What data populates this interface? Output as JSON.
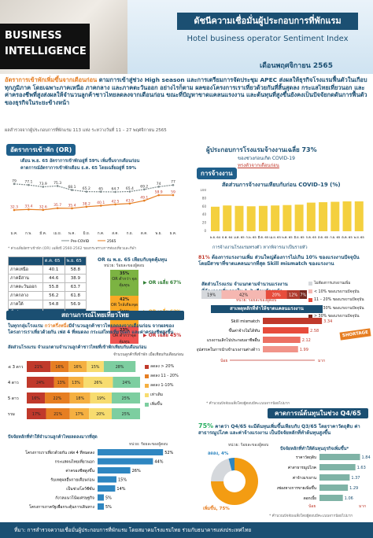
{
  "header": {
    "brand1": "BUSINESS",
    "brand2": "INTELLIGENCE",
    "title_th": "ดัชนีความเชื่อมั่นผู้ประกอบการที่พักแรม",
    "title_en": "Hotel business operator Sentiment Index",
    "month": "เดือนพฤศจิกายน 2565"
  },
  "intro": {
    "lead": "อัตราการเข้าพักเพิ่มขึ้นจากเดือนก่อน",
    "text": " ตามการเข้าสู่ช่วง High season และการเตรียมการจัดประชุม APEC ส่งผลให้ธุรกิจโรงแรมฟื้นตัวในเกือบทุกภูมิภาค โดยเฉพาะภาคเหนือ ภาคกลาง และภาคตะวันออก อย่างไรก็ตาม ผลของโครงการเราเที่ยวด้วยกันที่สิ้นสุดลง กระแสไทยเที่ยวนอก และค่าครองชีพที่สูงส่งผลให้จำนวนลูกค้าชาวไทยลดลงจากเดือนก่อน ขณะที่ปัญหาขาดแคลนแรงงาน และต้นทุนที่สูงขึ้นยังคงเป็นปัจจัยกดดันการฟื้นตัวของธุรกิจในระยะข้างหน้า",
    "survey": "ผลสำรวจจากผู้ประกอบการที่พักแรม 113 แห่ง ระหว่างวันที่ 11 – 27 พฤศจิกายน 2565"
  },
  "occ": {
    "title": "อัตราการเข้าพัก (OR)",
    "note1": "เดือน พ.ย. 65 อัตราการเข้าพักอยู่ที่ 59% เพิ่มขึ้นจากเดือนก่อน",
    "note2": "คาดการณ์อัตราการเข้าพักเดือน ธ.ค. 65 โดยเฉลี่ยอยู่ที่ 59%",
    "legend_pre": "Pre-COVID",
    "legend_2565": "2565",
    "footnote": "* ค่าเฉลี่ยอัตราเข้าพัก (OR) เฉลี่ยปี 2560-2562 ของกระทรวงการท่องเที่ยวและกีฬา",
    "table_head": [
      "",
      "ต.ค. 65",
      "พ.ย. 65"
    ],
    "table_rows": [
      [
        "ภาคเหนือ",
        "40.1",
        "58.8"
      ],
      [
        "ภาคอีสาน",
        "44.6",
        "38.9"
      ],
      [
        "ภาคตะวันออก",
        "55.8",
        "63.7"
      ],
      [
        "ภาคกลาง",
        "56.2",
        "61.8"
      ],
      [
        "ภาคใต้",
        "54.8",
        "56.9"
      ],
      [
        "ทั่วประเทศ",
        "49.1",
        "58.9"
      ]
    ],
    "or_title": "OR ณ พ.ย. 65 เทียบกับจุดคุ้มทุน",
    "or_unit": "หน่วย: ร้อยละของผู้ตอบ",
    "or_segments": [
      {
        "value": "35%",
        "label": "OR ต่ำกว่า จุดคุ้มทุน",
        "avg": "OR เฉลี่ย 67%"
      },
      {
        "value": "42%",
        "label": "OR ใกล้เคียงจุดคุ้มทุน",
        "avg": "OR เฉลี่ย 62%"
      },
      {
        "value": "23%",
        "label": "OR ต่ำกว่าจุดคุ้มทุน",
        "avg": "OR เฉลี่ย 45%"
      }
    ]
  },
  "tourist": {
    "title": "สถานการณ์ไทยเที่ยวไทย",
    "lead1": "ในทุกกลุ่มโรงแรม ",
    "lead2": "กว่าครึ่งหนึ่ง",
    "lead3": "มีจำนวนลูกค้าชาวไทยลดลงจากเดือนก่อน จากผลของโครงการเราเที่ยวด้วยกัน เฟส 4 ที่หมดลง กระแสไทยเที่ยวนอก และค่าครองชีพสูงขึ้น",
    "chart_title": "สัดส่วนโรงแรม จำแนกตามจำนวนลูกค้าชาวไทยที่เข้าพักเทียบกับเดือนก่อน",
    "unit": "จำนวนลูกค้าที่เข้าพัก เมื่อเทียบกับเดือนก่อน",
    "legend": [
      "ลดลง > 20%",
      "ลดลง 11 - 20%",
      "ลดลง 1-10%",
      "เท่าเดิม",
      "เพิ่มขึ้น"
    ],
    "factor_title": "ปัจจัยหลักที่ทำให้จำนวนลูกค้าไทยลดลงมากที่สุด",
    "factor_unit": "หน่วย: ร้อยละของผู้ตอบ"
  },
  "employ": {
    "title": "ผู้ประกอบการโรงแรมจ้างงานเฉลี่ย 73%",
    "sub1": "ของช่วงก่อนเกิด COVID-19",
    "sub2": "ทรงตัวจากเดือนก่อน",
    "box": "การจ้างงาน",
    "chart_title": "สัดส่วนการจ้างงานเทียบกับก่อน COVID-19 (%)",
    "sub3": "การจ้างงานโรงแรมทรงตัว หากพิจารณาเป็นรายหัว",
    "p81": "81%",
    "p81_text": " ต้องการแรงงานเพิ่ม ส่วนใหญ่ต้องการไม่เกิน 10% ของแรงงานปัจจุบัน โดยมีสาขาที่ขาดแคลนมากที่สุด Skill mismatch ของแรงงาน",
    "need_title": "สัดส่วนโรงแรม จำแนกตามจำนวนแรงงาน",
    "need_sub": "ที่ต้องการเพิ่มภายใน 1-3 เดือนข้างหน้า",
    "need_unit": "หน่วย: ร้อยละของผู้ตอบ",
    "need_legend": [
      "ไม่ต้องการแรงงานเพิ่ม",
      "< 10% ของแรงงานปัจจุบัน",
      "11 – 20% ของแรงงานปัจจุบัน",
      "21 – 30% ของแรงงานปัจจุบัน",
      "> 30% ของแรงงานปัจจุบัน"
    ],
    "reason_title": "สาเหตุหลักที่ทำให้ขาดแคลนแรงงาน",
    "reason_note": "* คำนวณปัจจัยเฉลี่ยโดยผู้ตอบมีคะแนนจากน้อยไปมาก",
    "less": "น้อย",
    "more": "มาก",
    "shortage": "SHORTAGE"
  },
  "cost": {
    "title": "คาดการณ์ต้นทุนในช่วง Q4/65",
    "lead1": "75%",
    "lead2": " คาดว่า Q4/65 จะมีต้นทุนเพิ่มขึ้นเทียบกับ Q3/65 โดยราคาวัตถุดิบ ค่าสาธารณูปโภค และค่าจ้างแรงงาน เป็นปัจจัยหลักที่ทำต้นทุนสูงขึ้น",
    "unit": "หน่วย: ร้อยละของผู้ตอบ",
    "pie_up": "เพิ่มขึ้น, 75%",
    "pie_down": "ลดลง, 4%",
    "factor_title": "ปัจจัยหลักที่ทำให้ต้นทุนธุรกิจเพิ่มขึ้น*",
    "note": "* คำนวณปัจจัยเฉลี่ยโดยผู้ตอบมีคะแนนจากน้อยไปมาก"
  },
  "footer": {
    "source": "ที่มา: การสำรวจความเชื่อมั่นผู้ประกอบการที่พักแรม โดยสมาคมโรงแรมไทย ร่วมกับธนาคารแห่งประเทศไทย"
  },
  "chart_data": [
    {
      "type": "line",
      "title": "อัตราการเข้าพัก (OR)",
      "categories": [
        "ม.ค.",
        "ก.พ.",
        "มี.ค.",
        "เม.ย.",
        "พ.ค.",
        "มิ.ย.",
        "ก.ค.",
        "ส.ค.",
        "ก.ย.",
        "ต.ค.",
        "พ.ย.",
        "ธ.ค."
      ],
      "series": [
        {
          "name": "Pre-COVID",
          "values": [
            79.0,
            77.1,
            73.9,
            75.3,
            68.1,
            65.2,
            65.0,
            64.7,
            65.4,
            69.2,
            74.0,
            77.0
          ]
        },
        {
          "name": "2565",
          "values": [
            32.3,
            33.4,
            32.6,
            35.7,
            35.4,
            38.2,
            40.1,
            42.5,
            43.9,
            49.1,
            58.9,
            59
          ]
        }
      ]
    },
    {
      "type": "bar",
      "title": "สัดส่วนการจ้างงานเทียบกับก่อน COVID-19 (%)",
      "categories": [
        "พ.ย. 64",
        "ธ.ค. 64",
        "ม.ค. 65",
        "ก.พ. 65",
        "มี.ค. 65",
        "เม.ย. 65",
        "พ.ค. 65",
        "มิ.ย. 65",
        "ก.ค. 65",
        "ส.ค. 65",
        "ก.ย. 65",
        "ต.ค. 65",
        "พ.ย. 65"
      ],
      "values": [
        60,
        63,
        62,
        61,
        62,
        63,
        64,
        65,
        70,
        71,
        72,
        73,
        73
      ],
      "ylim": [
        0,
        100
      ]
    },
    {
      "type": "bar",
      "title": "สัดส่วนโรงแรม จำแนกตามจำนวนแรงงาน",
      "categories": [
        "ไม่ต้องการแรงงานเพิ่ม",
        "< 10%",
        "11 – 20%",
        "21 – 30%",
        "> 30%"
      ],
      "values": [
        19,
        42,
        20,
        12,
        7
      ]
    },
    {
      "type": "bar",
      "title": "สาเหตุหลักที่ทำให้ขาดแคลนแรงงาน",
      "categories": [
        "Skill mismatch",
        "ขึ้นค่าจ้างไม่ได้ทัน",
        "แรงงานเลิกไปประกอบอาชีพอื่น",
        "อุปสรรคในการนำเข้าแรงงานต่างด้าว"
      ],
      "values": [
        3.34,
        2.58,
        2.12,
        1.99
      ]
    },
    {
      "type": "bar",
      "title": "สัดส่วนโรงแรม จำแนกตามจำนวนลูกค้าชาวไทยที่เข้าพักเทียบกับเดือนก่อน",
      "categories": [
        "≤ 3 ดาว",
        "4 ดาว",
        "5 ดาว",
        "รวม"
      ],
      "series": [
        {
          "name": "ลดลง > 20%",
          "values": [
            21,
            24,
            16,
            17
          ]
        },
        {
          "name": "ลดลง 11 - 20%",
          "values": [
            16,
            13,
            22,
            21
          ]
        },
        {
          "name": "ลดลง 1-10%",
          "values": [
            16,
            13,
            18,
            17
          ]
        },
        {
          "name": "เท่าเดิม",
          "values": [
            15,
            26,
            19,
            20
          ]
        },
        {
          "name": "เพิ่มขึ้น",
          "values": [
            28,
            24,
            25,
            25
          ]
        }
      ],
      "ylim": [
        0,
        100
      ]
    },
    {
      "type": "bar",
      "title": "ปัจจัยหลักที่ทำให้จำนวนลูกค้าไทยลดลงมากที่สุด",
      "categories": [
        "โครงการเราเที่ยวด้วยกัน เฟส 4 ที่หมดลง",
        "กระแสคนไทยเที่ยวนอก",
        "ค่าครองชีพสูงขึ้น",
        "รับเหตุผลอื่นรายเดือนก่อน",
        "เป็นช่วงโลว์ซีซั่น",
        "กังวลแนวโน้มเศรษฐกิจ",
        "โครงการภาครัฐเพื่อกระตุ้นการเดินทาง"
      ],
      "values": [
        52,
        44,
        26,
        15,
        14,
        5,
        5
      ]
    },
    {
      "type": "pie",
      "categories": [
        "เพิ่มขึ้น",
        "ทรงตัว",
        "ลดลง"
      ],
      "values": [
        75,
        21,
        4
      ]
    },
    {
      "type": "bar",
      "title": "ปัจจัยหลักที่ทำให้ต้นทุนธุรกิจเพิ่มขึ้น*",
      "categories": [
        "ราคาวัตถุดิบ",
        "ค่าสาธารณูปโภค",
        "ค่าจ้างแรงงาน",
        "บางช่องทางการขายเพิ่มขึ้น",
        "ดอกเบี้ย"
      ],
      "values": [
        1.84,
        1.63,
        1.37,
        1.29,
        1.06
      ]
    }
  ]
}
